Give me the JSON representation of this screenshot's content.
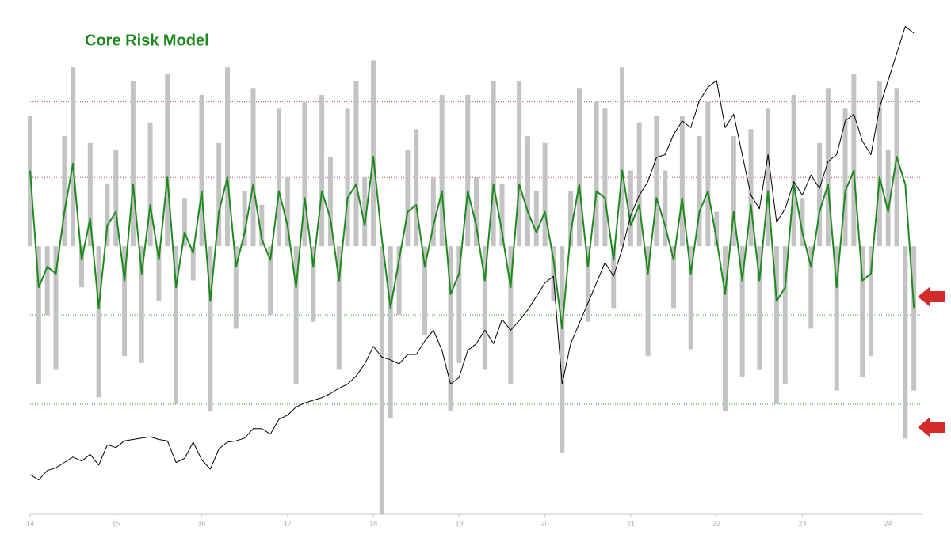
{
  "chart_data": {
    "type": "combo",
    "title": "Core Risk Model",
    "title_color": "#1e8a1e",
    "x": [
      14.0,
      14.1,
      14.2,
      14.3,
      14.4,
      14.5,
      14.6,
      14.7,
      14.8,
      14.9,
      15.0,
      15.1,
      15.2,
      15.3,
      15.4,
      15.5,
      15.6,
      15.7,
      15.8,
      15.9,
      16.0,
      16.1,
      16.2,
      16.3,
      16.4,
      16.5,
      16.6,
      16.7,
      16.8,
      16.9,
      17.0,
      17.1,
      17.2,
      17.3,
      17.4,
      17.5,
      17.6,
      17.7,
      17.8,
      17.9,
      18.0,
      18.1,
      18.2,
      18.3,
      18.4,
      18.5,
      18.6,
      18.7,
      18.8,
      18.9,
      19.0,
      19.1,
      19.2,
      19.3,
      19.4,
      19.5,
      19.6,
      19.7,
      19.8,
      19.9,
      20.0,
      20.1,
      20.2,
      20.3,
      20.4,
      20.5,
      20.6,
      20.7,
      20.8,
      20.9,
      21.0,
      21.1,
      21.2,
      21.3,
      21.4,
      21.5,
      21.6,
      21.7,
      21.8,
      21.9,
      22.0,
      22.1,
      22.2,
      22.3,
      22.4,
      22.5,
      22.6,
      22.7,
      22.8,
      22.9,
      23.0,
      23.1,
      23.2,
      23.3,
      23.4,
      23.5,
      23.6,
      23.7,
      23.8,
      23.9,
      24.0,
      24.1,
      24.2,
      24.3
    ],
    "xlim": [
      14,
      24.4
    ],
    "xticks": [
      14,
      15,
      16,
      17,
      18,
      19,
      20,
      21,
      22,
      23,
      24
    ],
    "ylim": [
      -3.9,
      3.35
    ],
    "y2lim": [
      1536,
      5229
    ],
    "reference_lines": [
      {
        "value": 2.1,
        "color": "#c0504d"
      },
      {
        "value": 1,
        "color": "#c0504d"
      },
      {
        "value": -1,
        "color": "#2e9e2e"
      },
      {
        "value": -2.3,
        "color": "#2e9e2e"
      }
    ],
    "series": [
      {
        "type": "bar",
        "color": "#c3c3c3",
        "values": [
          1.9,
          -2.0,
          -1.0,
          -1.8,
          1.6,
          2.6,
          -0.6,
          1.5,
          -2.2,
          0.9,
          1.4,
          -1.6,
          2.4,
          -1.7,
          1.8,
          -0.8,
          2.5,
          -2.3,
          0.7,
          -0.5,
          2.2,
          -2.4,
          1.5,
          2.6,
          -1.2,
          0.8,
          2.3,
          0.6,
          -1.0,
          2.0,
          1.0,
          -2.0,
          2.1,
          -1.1,
          2.2,
          1.3,
          -1.8,
          2.0,
          2.4,
          1.0,
          2.7,
          -3.9,
          -2.5,
          -1.0,
          1.4,
          1.7,
          -1.3,
          1.0,
          2.2,
          -2.4,
          -1.7,
          2.2,
          1.0,
          -1.8,
          2.4,
          0.9,
          -2.0,
          2.4,
          1.6,
          0.8,
          1.5,
          -0.8,
          -3.0,
          0.8,
          2.3,
          -1.1,
          2.1,
          2.0,
          -0.9,
          2.6,
          1.1,
          1.8,
          -1.6,
          1.9,
          1.1,
          -0.9,
          1.9,
          -1.5,
          1.6,
          2.1,
          0.5,
          -2.4,
          1.6,
          -1.9,
          1.7,
          -1.8,
          2.0,
          -2.3,
          -2.0,
          2.2,
          0.7,
          -1.2,
          1.5,
          2.3,
          -2.1,
          2.0,
          2.5,
          -1.9,
          -1.6,
          2.4,
          1.4,
          2.3,
          -2.8,
          -2.1
        ]
      },
      {
        "type": "line",
        "color": "#1e8a1e",
        "width": 2,
        "values": [
          1.1,
          -0.6,
          -0.3,
          -0.4,
          0.5,
          1.2,
          -0.2,
          0.4,
          -0.9,
          0.3,
          0.5,
          -0.5,
          0.9,
          -0.4,
          0.6,
          -0.2,
          1.0,
          -0.6,
          0.2,
          -0.1,
          0.8,
          -0.8,
          0.5,
          1.0,
          -0.3,
          0.2,
          0.9,
          0.1,
          -0.2,
          0.8,
          0.3,
          -0.6,
          0.7,
          -0.3,
          0.8,
          0.4,
          -0.5,
          0.7,
          0.9,
          0.3,
          1.3,
          0.1,
          -0.9,
          -0.2,
          0.5,
          0.6,
          -0.3,
          0.3,
          0.8,
          -0.7,
          -0.4,
          0.8,
          0.3,
          -0.5,
          0.9,
          0.2,
          -0.6,
          0.9,
          0.5,
          0.2,
          0.5,
          -0.2,
          -1.2,
          0.2,
          0.9,
          -0.3,
          0.8,
          0.7,
          -0.2,
          1.1,
          0.3,
          0.6,
          -0.4,
          0.7,
          0.3,
          -0.2,
          0.7,
          -0.4,
          0.5,
          0.8,
          0.1,
          -0.7,
          0.5,
          -0.5,
          0.6,
          -0.5,
          0.8,
          -0.8,
          -0.6,
          0.9,
          0.2,
          -0.3,
          0.5,
          0.9,
          -0.6,
          0.8,
          1.1,
          -0.5,
          -0.4,
          1.0,
          0.5,
          1.3,
          0.9,
          -0.9
        ]
      },
      {
        "type": "line",
        "axis": "y2",
        "color": "#000000",
        "width": 1,
        "values": [
          1830,
          1790,
          1860,
          1880,
          1920,
          1960,
          1930,
          1980,
          1900,
          2050,
          2030,
          2080,
          2090,
          2100,
          2110,
          2090,
          2080,
          1920,
          1950,
          2070,
          1940,
          1870,
          2020,
          2070,
          2080,
          2100,
          2170,
          2170,
          2130,
          2240,
          2270,
          2330,
          2360,
          2380,
          2400,
          2430,
          2470,
          2500,
          2560,
          2650,
          2780,
          2700,
          2680,
          2650,
          2720,
          2720,
          2820,
          2900,
          2750,
          2500,
          2550,
          2750,
          2800,
          2900,
          2800,
          2980,
          2900,
          2970,
          3050,
          3150,
          3250,
          3300,
          2500,
          2800,
          2950,
          3100,
          3250,
          3400,
          3300,
          3500,
          3750,
          3900,
          4000,
          4180,
          4200,
          4350,
          4450,
          4400,
          4600,
          4700,
          4750,
          4400,
          4500,
          4200,
          3900,
          3800,
          4200,
          3700,
          3800,
          4000,
          3900,
          4050,
          3950,
          4150,
          4200,
          4450,
          4500,
          4300,
          4200,
          4550,
          4750,
          4950,
          5150,
          5100
        ]
      }
    ]
  }
}
